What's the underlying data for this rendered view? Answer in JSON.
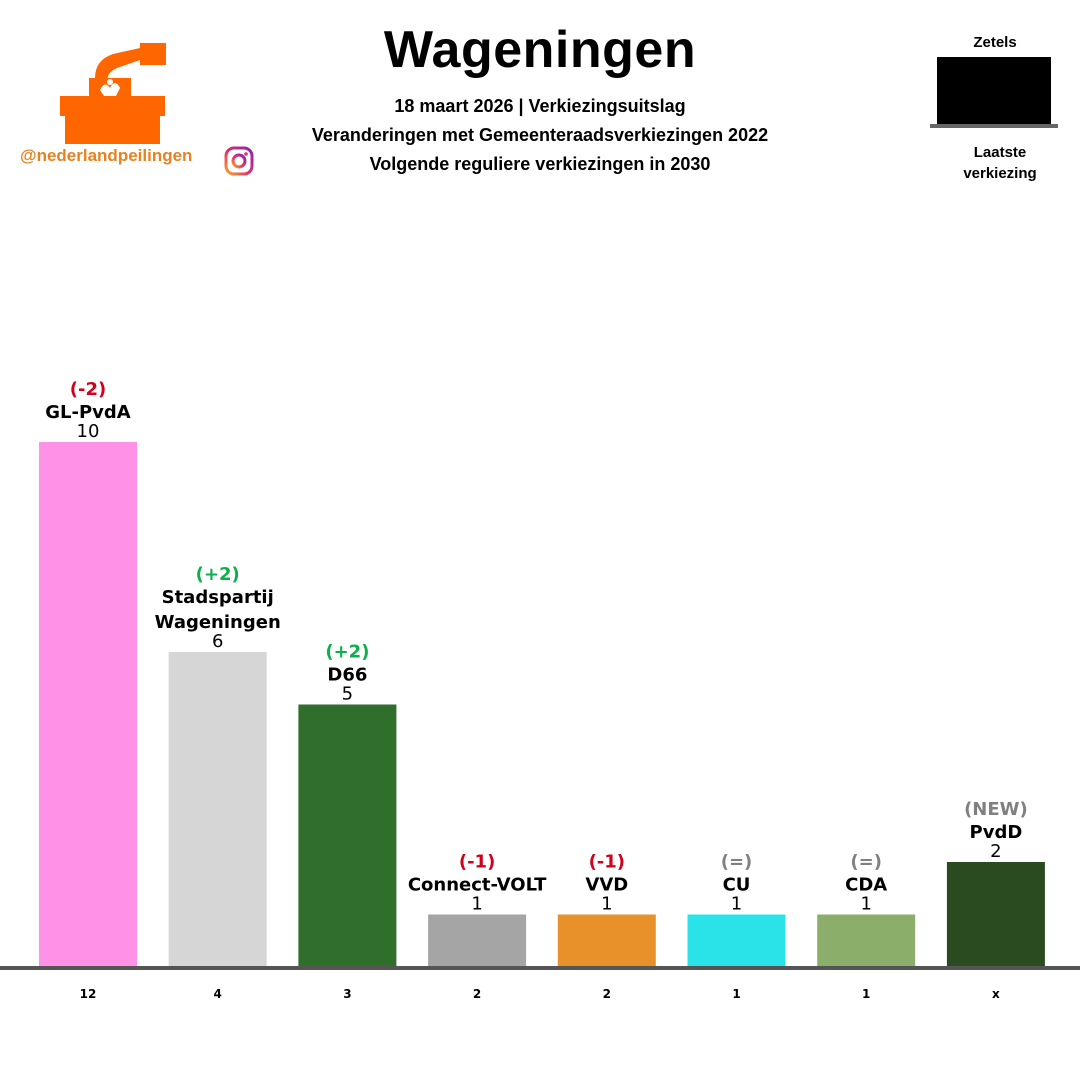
{
  "header": {
    "title": "Wageningen",
    "subtitle_1": "18 maart 2026 | Verkiezingsuitslag",
    "subtitle_2": "Veranderingen met Gemeenteraadsverkiezingen 2022",
    "subtitle_3": "Volgende reguliere verkiezingen in 2030"
  },
  "branding": {
    "handle": "@nederlandpeilingen",
    "logo_icon": "ballot-box-icon",
    "social_icon": "instagram-icon",
    "logo_color": "#FF6600"
  },
  "legend": {
    "top_label": "Zetels",
    "bottom_label_1": "Laatste",
    "bottom_label_2": "verkiezing"
  },
  "colors": {
    "negative": "#D0021B",
    "positive": "#0BB04B",
    "neutral": "#808080"
  },
  "chart_data": {
    "type": "bar",
    "categories": [
      "GL-PvdA",
      "Stadspartij Wageningen",
      "D66",
      "Connect-VOLT",
      "VVD",
      "CU",
      "CDA",
      "PvdD"
    ],
    "category_lines": [
      [
        "GL-PvdA"
      ],
      [
        "Stadspartij",
        "Wageningen"
      ],
      [
        "D66"
      ],
      [
        "Connect-VOLT"
      ],
      [
        "VVD"
      ],
      [
        "CU"
      ],
      [
        "CDA"
      ],
      [
        "PvdD"
      ]
    ],
    "values": [
      10,
      6,
      5,
      1,
      1,
      1,
      1,
      2
    ],
    "changes": [
      "(-2)",
      "(+2)",
      "(+2)",
      "(-1)",
      "(-1)",
      "(=)",
      "(=)",
      "(NEW)"
    ],
    "change_types": [
      "negative",
      "positive",
      "positive",
      "negative",
      "negative",
      "neutral",
      "neutral",
      "neutral"
    ],
    "previous": [
      "12",
      "4",
      "3",
      "2",
      "2",
      "1",
      "1",
      "x"
    ],
    "colors": [
      "#FF91E6",
      "#D6D6D6",
      "#2F6E2B",
      "#A5A5A5",
      "#E8912A",
      "#2AE3E8",
      "#8BAF6A",
      "#2A4A1F"
    ],
    "ylim": [
      0,
      10
    ],
    "grid": false
  }
}
